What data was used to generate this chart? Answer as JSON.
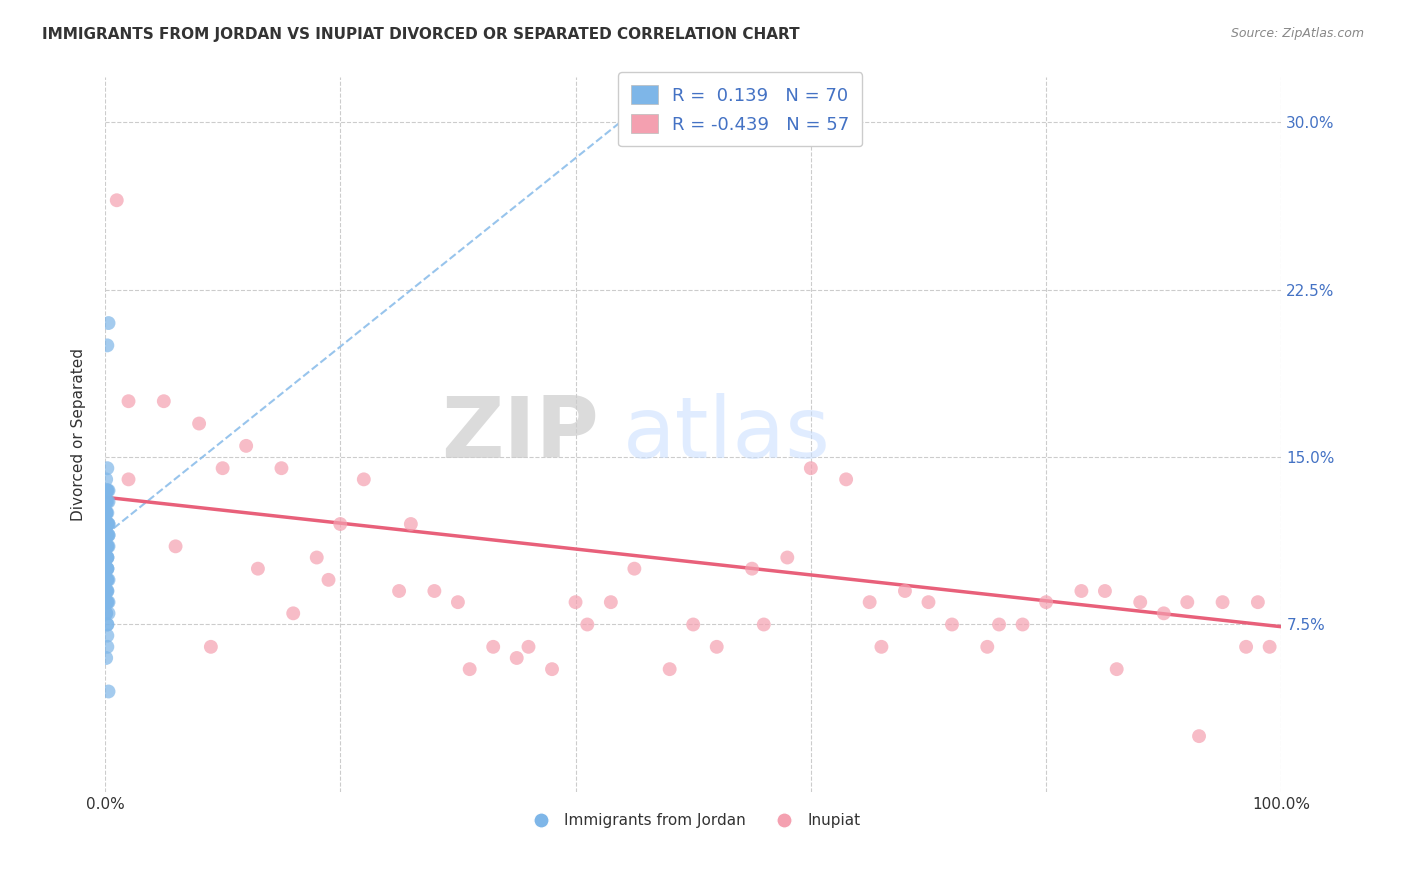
{
  "title": "IMMIGRANTS FROM JORDAN VS INUPIAT DIVORCED OR SEPARATED CORRELATION CHART",
  "source": "Source: ZipAtlas.com",
  "ylabel": "Divorced or Separated",
  "xmin": 0.0,
  "xmax": 1.0,
  "ymin": 0.0,
  "ymax": 0.32,
  "yticks": [
    0.075,
    0.15,
    0.225,
    0.3
  ],
  "ytick_labels": [
    "7.5%",
    "15.0%",
    "22.5%",
    "30.0%"
  ],
  "blue_color": "#7EB6E8",
  "pink_color": "#F4A0B0",
  "trendline_blue_color": "#7EB6E8",
  "trendline_pink_color": "#E8607A",
  "watermark_zip": "ZIP",
  "watermark_atlas": "atlas",
  "blue_scatter_x": [
    0.001,
    0.002,
    0.001,
    0.003,
    0.002,
    0.001,
    0.003,
    0.002,
    0.003,
    0.001,
    0.001,
    0.002,
    0.001,
    0.002,
    0.001,
    0.001,
    0.002,
    0.003,
    0.001,
    0.002,
    0.002,
    0.001,
    0.001,
    0.002,
    0.002,
    0.003,
    0.001,
    0.002,
    0.002,
    0.003,
    0.001,
    0.001,
    0.002,
    0.002,
    0.003,
    0.001,
    0.002,
    0.002,
    0.001,
    0.001,
    0.002,
    0.003,
    0.003,
    0.001,
    0.002,
    0.001,
    0.002,
    0.001,
    0.002,
    0.003,
    0.001,
    0.002,
    0.002,
    0.001,
    0.002,
    0.001,
    0.002,
    0.002,
    0.001,
    0.001,
    0.003,
    0.002,
    0.001,
    0.002,
    0.003,
    0.002,
    0.001,
    0.001,
    0.002,
    0.002
  ],
  "blue_scatter_y": [
    0.13,
    0.135,
    0.14,
    0.115,
    0.145,
    0.105,
    0.12,
    0.13,
    0.11,
    0.125,
    0.1,
    0.095,
    0.105,
    0.115,
    0.12,
    0.09,
    0.085,
    0.08,
    0.095,
    0.105,
    0.11,
    0.115,
    0.125,
    0.1,
    0.09,
    0.135,
    0.095,
    0.1,
    0.105,
    0.12,
    0.085,
    0.08,
    0.075,
    0.09,
    0.095,
    0.125,
    0.115,
    0.11,
    0.12,
    0.135,
    0.2,
    0.21,
    0.13,
    0.125,
    0.12,
    0.115,
    0.11,
    0.1,
    0.095,
    0.085,
    0.08,
    0.075,
    0.07,
    0.06,
    0.065,
    0.09,
    0.1,
    0.12,
    0.125,
    0.135,
    0.115,
    0.105,
    0.095,
    0.085,
    0.045,
    0.12,
    0.13,
    0.11,
    0.135,
    0.125
  ],
  "pink_scatter_x": [
    0.01,
    0.02,
    0.05,
    0.08,
    0.1,
    0.12,
    0.15,
    0.18,
    0.2,
    0.22,
    0.25,
    0.28,
    0.3,
    0.33,
    0.35,
    0.38,
    0.4,
    0.43,
    0.45,
    0.48,
    0.5,
    0.52,
    0.55,
    0.58,
    0.6,
    0.63,
    0.65,
    0.68,
    0.7,
    0.72,
    0.75,
    0.78,
    0.8,
    0.83,
    0.85,
    0.88,
    0.9,
    0.92,
    0.95,
    0.98,
    0.02,
    0.06,
    0.09,
    0.13,
    0.16,
    0.19,
    0.26,
    0.31,
    0.36,
    0.41,
    0.56,
    0.66,
    0.76,
    0.86,
    0.93,
    0.97,
    0.99
  ],
  "pink_scatter_y": [
    0.265,
    0.175,
    0.175,
    0.165,
    0.145,
    0.155,
    0.145,
    0.105,
    0.12,
    0.14,
    0.09,
    0.09,
    0.085,
    0.065,
    0.06,
    0.055,
    0.085,
    0.085,
    0.1,
    0.055,
    0.075,
    0.065,
    0.1,
    0.105,
    0.145,
    0.14,
    0.085,
    0.09,
    0.085,
    0.075,
    0.065,
    0.075,
    0.085,
    0.09,
    0.09,
    0.085,
    0.08,
    0.085,
    0.085,
    0.085,
    0.14,
    0.11,
    0.065,
    0.1,
    0.08,
    0.095,
    0.12,
    0.055,
    0.065,
    0.075,
    0.075,
    0.065,
    0.075,
    0.055,
    0.025,
    0.065,
    0.065
  ],
  "blue_trend_x": [
    0.0,
    0.45
  ],
  "blue_trend_y": [
    0.115,
    0.305
  ],
  "pink_trend_x": [
    0.0,
    1.0
  ],
  "pink_trend_y": [
    0.132,
    0.074
  ]
}
